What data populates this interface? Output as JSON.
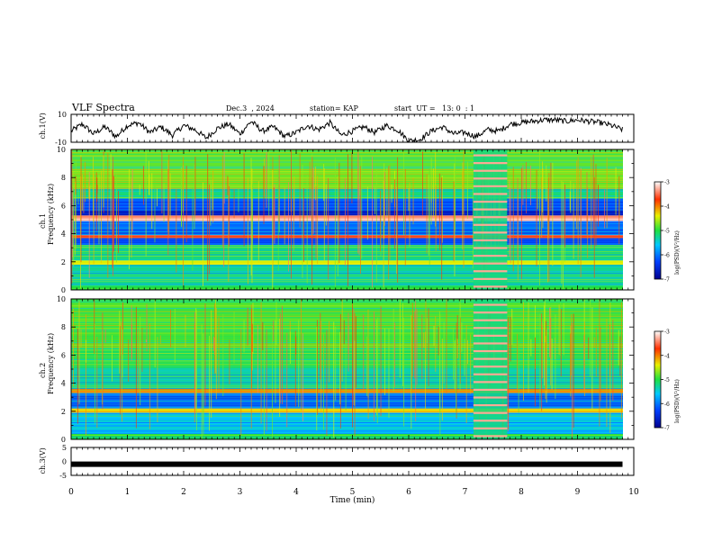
{
  "header": {
    "title": "VLF Spectra",
    "date": "Dec.3  , 2024",
    "station": "station= KAP",
    "start_ut": "start  UT =   13: 0  : 1"
  },
  "chart_data": [
    {
      "type": "line",
      "panel": "ch1-waveform",
      "ylabel": "ch.1(V)",
      "ylim": [
        -10,
        10
      ],
      "yticks": [
        "10",
        "-10"
      ],
      "xlim": [
        0,
        10
      ],
      "x": [
        0,
        0.2,
        0.4,
        0.6,
        0.8,
        1.0,
        1.2,
        1.4,
        1.6,
        1.8,
        2.0,
        2.2,
        2.4,
        2.6,
        2.8,
        3.0,
        3.2,
        3.4,
        3.6,
        3.8,
        4.0,
        4.2,
        4.4,
        4.6,
        4.8,
        5.0,
        5.2,
        5.4,
        5.6,
        5.8,
        6.0,
        6.2,
        6.4,
        6.6,
        6.8,
        7.0,
        7.2,
        7.4,
        7.6,
        7.8,
        8.0,
        8.2,
        8.4,
        8.6,
        8.8,
        9.0,
        9.2,
        9.4,
        9.6,
        9.8
      ],
      "y": [
        -2,
        3,
        -4,
        1,
        -6,
        2,
        4,
        -3,
        1,
        -5,
        2,
        -1,
        -7,
        0,
        3,
        -4,
        5,
        -2,
        1,
        -6,
        -3,
        2,
        -1,
        4,
        -5,
        -2,
        1,
        -3,
        2,
        -1,
        -9,
        -8,
        -2,
        1,
        -4,
        -3,
        -6,
        -1,
        -2,
        3,
        4,
        5,
        6,
        6,
        5,
        6,
        5,
        4,
        2,
        -1
      ]
    },
    {
      "type": "heatmap",
      "panel": "ch1-spectrogram",
      "ylabel": "ch.1",
      "ylabel2": "Frequency (kHz)",
      "yticks": [
        "0",
        "2",
        "4",
        "6",
        "8",
        "10"
      ],
      "ylim": [
        0,
        10
      ],
      "xlim": [
        0,
        10
      ],
      "colorbar": {
        "label": "log(PSD)(V²/Hz)",
        "ticks": [
          "-3",
          "-4",
          "-5",
          "-6",
          "-7"
        ],
        "range": [
          -7,
          -3
        ]
      },
      "bands": [
        {
          "from": 0.0,
          "to": 0.3,
          "level": -5.0
        },
        {
          "from": 0.3,
          "to": 1.8,
          "level": -5.3
        },
        {
          "from": 1.8,
          "to": 2.1,
          "level": -4.4
        },
        {
          "from": 2.1,
          "to": 3.2,
          "level": -5.2
        },
        {
          "from": 3.2,
          "to": 3.7,
          "level": -6.2
        },
        {
          "from": 3.7,
          "to": 3.9,
          "level": -3.6
        },
        {
          "from": 3.9,
          "to": 4.9,
          "level": -6.1
        },
        {
          "from": 4.9,
          "to": 5.3,
          "level": -3.3
        },
        {
          "from": 5.3,
          "to": 5.7,
          "level": -6.5
        },
        {
          "from": 5.7,
          "to": 6.5,
          "level": -6.2
        },
        {
          "from": 6.5,
          "to": 7.2,
          "level": -5.2
        },
        {
          "from": 7.2,
          "to": 10.0,
          "level": -4.8
        }
      ],
      "burst": {
        "t_start": 7.15,
        "t_end": 7.75
      }
    },
    {
      "type": "heatmap",
      "panel": "ch2-spectrogram",
      "ylabel": "ch.2",
      "ylabel2": "Frequency (kHz)",
      "yticks": [
        "0",
        "2",
        "4",
        "6",
        "8",
        "10"
      ],
      "ylim": [
        0,
        10
      ],
      "xlim": [
        0,
        10
      ],
      "colorbar": {
        "label": "log(PSD)(V²/Hz)",
        "ticks": [
          "-3",
          "-4",
          "-5",
          "-6",
          "-7"
        ],
        "range": [
          -7,
          -3
        ]
      },
      "bands": [
        {
          "from": 0.0,
          "to": 0.4,
          "level": -5.0
        },
        {
          "from": 0.4,
          "to": 1.9,
          "level": -5.6
        },
        {
          "from": 1.9,
          "to": 2.2,
          "level": -4.3
        },
        {
          "from": 2.2,
          "to": 3.3,
          "level": -6.0
        },
        {
          "from": 3.3,
          "to": 3.6,
          "level": -4.0
        },
        {
          "from": 3.6,
          "to": 5.0,
          "level": -5.3
        },
        {
          "from": 5.0,
          "to": 6.5,
          "level": -5.1
        },
        {
          "from": 6.5,
          "to": 10.0,
          "level": -4.9
        }
      ],
      "burst": {
        "t_start": 7.15,
        "t_end": 7.75
      }
    },
    {
      "type": "line",
      "panel": "ch3-waveform",
      "ylabel": "ch.3(V)",
      "yticks": [
        "5",
        "0",
        "-5"
      ],
      "ylim": [
        -5,
        5
      ],
      "xlim": [
        0,
        10
      ],
      "x": [
        0,
        9.8
      ],
      "y": [
        -1,
        -1
      ]
    }
  ],
  "xaxis": {
    "label": "Time (min)",
    "ticks": [
      "0",
      "1",
      "2",
      "3",
      "4",
      "5",
      "6",
      "7",
      "8",
      "9",
      "10"
    ]
  }
}
